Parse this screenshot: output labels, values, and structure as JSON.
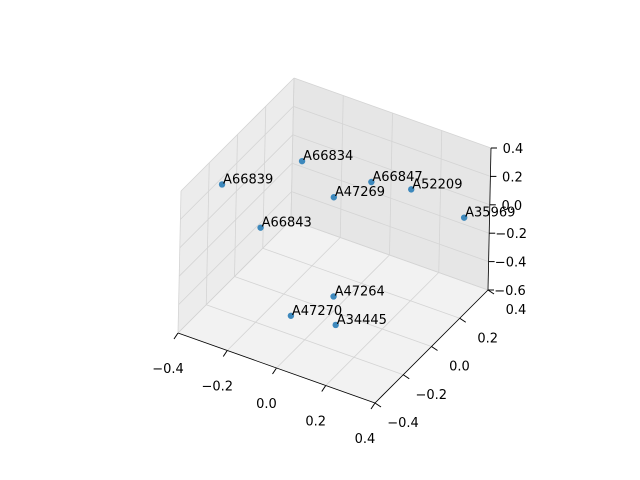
{
  "chart_data": {
    "type": "scatter3d",
    "series": [
      {
        "color": "#1f77b4",
        "labels": [
          "A66834",
          "A66839",
          "A66847",
          "A52209",
          "A47269",
          "A35969",
          "A66843",
          "A47264",
          "A47270",
          "A34445"
        ],
        "x": [
          -0.21,
          -0.38,
          0.06,
          0.16,
          -0.09,
          0.32,
          -0.26,
          0.04,
          -0.03,
          0.09
        ],
        "y": [
          0.13,
          -0.14,
          0.15,
          0.26,
          0.15,
          0.36,
          -0.07,
          -0.07,
          -0.25,
          -0.14
        ],
        "z": [
          0.2,
          0.2,
          0.2,
          0.1,
          0.0,
          -0.1,
          -0.1,
          -0.4,
          -0.4,
          -0.5
        ]
      }
    ],
    "xlim": [
      -0.4,
      0.4
    ],
    "ylim": [
      -0.4,
      0.4
    ],
    "zlim": [
      -0.6,
      0.4
    ],
    "xticks": [
      {
        "value": -0.4,
        "label": "−0.4"
      },
      {
        "value": -0.2,
        "label": "−0.2"
      },
      {
        "value": 0,
        "label": "0.0"
      },
      0.2,
      0.4
    ],
    "yticks": [
      {
        "value": -0.4,
        "label": "−0.4"
      },
      {
        "value": -0.2,
        "label": "−0.2"
      },
      {
        "value": 0,
        "label": "0.0"
      },
      0.2,
      0.4
    ],
    "zticks": [
      {
        "value": -0.6,
        "label": "−0.6"
      },
      {
        "value": -0.4,
        "label": "−0.4"
      },
      {
        "value": -0.2,
        "label": "−0.2"
      },
      {
        "value": 0,
        "label": "0.0"
      },
      0.2,
      0.4
    ],
    "grid": true
  }
}
